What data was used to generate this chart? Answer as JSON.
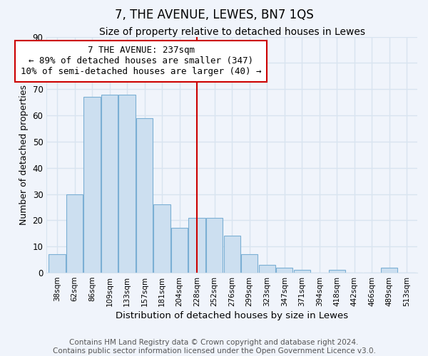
{
  "title": "7, THE AVENUE, LEWES, BN7 1QS",
  "subtitle": "Size of property relative to detached houses in Lewes",
  "xlabel": "Distribution of detached houses by size in Lewes",
  "ylabel": "Number of detached properties",
  "bar_labels": [
    "38sqm",
    "62sqm",
    "86sqm",
    "109sqm",
    "133sqm",
    "157sqm",
    "181sqm",
    "204sqm",
    "228sqm",
    "252sqm",
    "276sqm",
    "299sqm",
    "323sqm",
    "347sqm",
    "371sqm",
    "394sqm",
    "418sqm",
    "442sqm",
    "466sqm",
    "489sqm",
    "513sqm"
  ],
  "bar_values": [
    7,
    30,
    67,
    68,
    68,
    59,
    26,
    17,
    21,
    21,
    14,
    7,
    3,
    2,
    1,
    0,
    1,
    0,
    0,
    2,
    0
  ],
  "bar_color": "#ccdff0",
  "bar_edge_color": "#7bafd4",
  "vline_x": 8,
  "vline_color": "#cc0000",
  "annotation_text": "7 THE AVENUE: 237sqm\n← 89% of detached houses are smaller (347)\n10% of semi-detached houses are larger (40) →",
  "annotation_box_color": "#ffffff",
  "annotation_box_edge": "#cc0000",
  "ylim": [
    0,
    90
  ],
  "yticks": [
    0,
    10,
    20,
    30,
    40,
    50,
    60,
    70,
    80,
    90
  ],
  "footer_text": "Contains HM Land Registry data © Crown copyright and database right 2024.\nContains public sector information licensed under the Open Government Licence v3.0.",
  "background_color": "#f0f4fb",
  "plot_background": "#f0f4fb",
  "grid_color": "#d8e4f0",
  "title_fontsize": 12,
  "subtitle_fontsize": 10,
  "footer_fontsize": 7.5,
  "annot_fontsize": 9
}
